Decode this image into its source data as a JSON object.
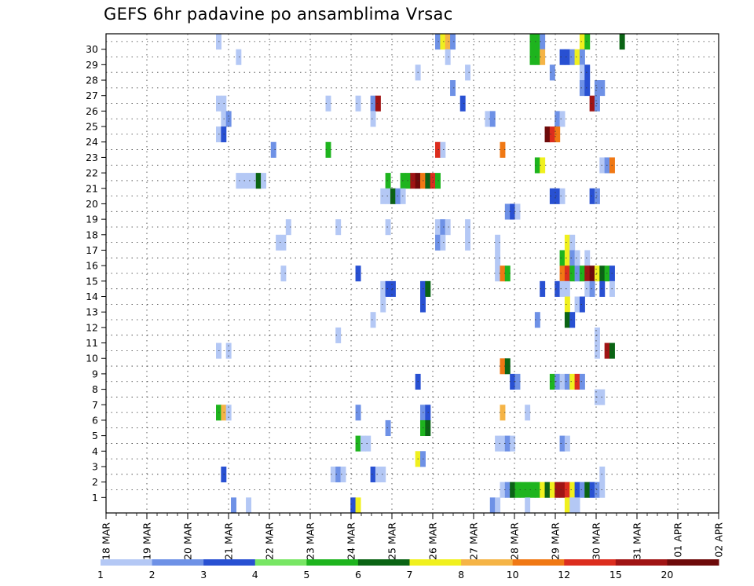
{
  "chart_data": {
    "type": "heatmap",
    "title": "GEFS 6hr padavine po ansamblima Vrsac",
    "xlabel": "",
    "ylabel": "",
    "x_tick_labels": [
      "18 MAR",
      "19 MAR",
      "20 MAR",
      "21 MAR",
      "22 MAR",
      "23 MAR",
      "24 MAR",
      "25 MAR",
      "26 MAR",
      "27 MAR",
      "28 MAR",
      "29 MAR",
      "30 MAR",
      "31 MAR",
      "01 APR",
      "02 APR"
    ],
    "x_range_hours": [
      0,
      360
    ],
    "step_hours": 6,
    "y_tick_labels": [
      "1",
      "2",
      "3",
      "4",
      "5",
      "6",
      "7",
      "8",
      "9",
      "10",
      "11",
      "12",
      "13",
      "14",
      "15",
      "16",
      "17",
      "18",
      "19",
      "20",
      "21",
      "22",
      "23",
      "24",
      "25",
      "26",
      "27",
      "28",
      "29",
      "30"
    ],
    "y_range": [
      0,
      30
    ],
    "grid": true,
    "legend": {
      "placement": "bottom",
      "labels": [
        "1",
        "2",
        "3",
        "4",
        "5",
        "6",
        "7",
        "8",
        "10",
        "12",
        "15",
        "20"
      ],
      "colors": [
        "#b4c8f5",
        "#6e91e6",
        "#2850d2",
        "#78e664",
        "#1eb41e",
        "#0a6414",
        "#f0f01e",
        "#f5b446",
        "#f07814",
        "#dc2d1e",
        "#a01414",
        "#6e0a0a"
      ]
    },
    "cells": [
      [
        30,
        22,
        1
      ],
      [
        30,
        66,
        2
      ],
      [
        30,
        67,
        7
      ],
      [
        30,
        68,
        8
      ],
      [
        30,
        69,
        2
      ],
      [
        30,
        85,
        5
      ],
      [
        30,
        86,
        5
      ],
      [
        30,
        87,
        2
      ],
      [
        30,
        95,
        7
      ],
      [
        30,
        96,
        5
      ],
      [
        30,
        103,
        6
      ],
      [
        29,
        26,
        1
      ],
      [
        29,
        68,
        1
      ],
      [
        29,
        85,
        5
      ],
      [
        29,
        86,
        5
      ],
      [
        29,
        87,
        8
      ],
      [
        29,
        91,
        3
      ],
      [
        29,
        92,
        3
      ],
      [
        29,
        93,
        2
      ],
      [
        29,
        94,
        7
      ],
      [
        29,
        95,
        2
      ],
      [
        28,
        62,
        1
      ],
      [
        28,
        72,
        1
      ],
      [
        28,
        89,
        2
      ],
      [
        28,
        95,
        1
      ],
      [
        28,
        96,
        3
      ],
      [
        27,
        69,
        2
      ],
      [
        27,
        95,
        2
      ],
      [
        27,
        96,
        3
      ],
      [
        27,
        98,
        2
      ],
      [
        27,
        99,
        2
      ],
      [
        26,
        22,
        1
      ],
      [
        26,
        23,
        1
      ],
      [
        26,
        44,
        1
      ],
      [
        26,
        50,
        1
      ],
      [
        26,
        53,
        2
      ],
      [
        26,
        54,
        11
      ],
      [
        26,
        71,
        3
      ],
      [
        26,
        97,
        11
      ],
      [
        26,
        98,
        2
      ],
      [
        25,
        23,
        1
      ],
      [
        25,
        24,
        2
      ],
      [
        25,
        53,
        1
      ],
      [
        25,
        76,
        1
      ],
      [
        25,
        77,
        2
      ],
      [
        25,
        90,
        2
      ],
      [
        25,
        91,
        1
      ],
      [
        24,
        22,
        1
      ],
      [
        24,
        23,
        3
      ],
      [
        24,
        88,
        12
      ],
      [
        24,
        89,
        10
      ],
      [
        24,
        90,
        9
      ],
      [
        23,
        33,
        2
      ],
      [
        23,
        44,
        5
      ],
      [
        23,
        66,
        10
      ],
      [
        23,
        67,
        1
      ],
      [
        23,
        79,
        9
      ],
      [
        22,
        86,
        5
      ],
      [
        22,
        87,
        7
      ],
      [
        22,
        99,
        1
      ],
      [
        22,
        100,
        2
      ],
      [
        22,
        101,
        9
      ],
      [
        21,
        26,
        1
      ],
      [
        21,
        27,
        1
      ],
      [
        21,
        28,
        1
      ],
      [
        21,
        29,
        1
      ],
      [
        21,
        30,
        6
      ],
      [
        21,
        31,
        1
      ],
      [
        21,
        56,
        5
      ],
      [
        21,
        59,
        5
      ],
      [
        21,
        60,
        5
      ],
      [
        21,
        61,
        11
      ],
      [
        21,
        62,
        12
      ],
      [
        21,
        63,
        9
      ],
      [
        21,
        64,
        6
      ],
      [
        21,
        65,
        10
      ],
      [
        21,
        66,
        5
      ],
      [
        20,
        55,
        1
      ],
      [
        20,
        56,
        1
      ],
      [
        20,
        57,
        6
      ],
      [
        20,
        58,
        2
      ],
      [
        20,
        59,
        1
      ],
      [
        20,
        89,
        3
      ],
      [
        20,
        90,
        3
      ],
      [
        20,
        91,
        1
      ],
      [
        20,
        97,
        3
      ],
      [
        20,
        98,
        2
      ],
      [
        19,
        80,
        2
      ],
      [
        19,
        81,
        3
      ],
      [
        19,
        82,
        1
      ],
      [
        18,
        36,
        1
      ],
      [
        18,
        46,
        1
      ],
      [
        18,
        56,
        1
      ],
      [
        18,
        66,
        1
      ],
      [
        18,
        67,
        2
      ],
      [
        18,
        68,
        1
      ],
      [
        18,
        72,
        1
      ],
      [
        17,
        34,
        1
      ],
      [
        17,
        35,
        1
      ],
      [
        17,
        66,
        2
      ],
      [
        17,
        67,
        1
      ],
      [
        17,
        72,
        1
      ],
      [
        17,
        78,
        1
      ],
      [
        17,
        92,
        7
      ],
      [
        17,
        93,
        1
      ],
      [
        16,
        78,
        1
      ],
      [
        16,
        91,
        5
      ],
      [
        16,
        92,
        7
      ],
      [
        16,
        93,
        2
      ],
      [
        16,
        94,
        1
      ],
      [
        16,
        96,
        1
      ],
      [
        15,
        35,
        1
      ],
      [
        15,
        50,
        3
      ],
      [
        15,
        78,
        1
      ],
      [
        15,
        79,
        9
      ],
      [
        15,
        80,
        5
      ],
      [
        15,
        91,
        9
      ],
      [
        15,
        92,
        10
      ],
      [
        15,
        93,
        5
      ],
      [
        15,
        94,
        2
      ],
      [
        15,
        95,
        5
      ],
      [
        15,
        96,
        11
      ],
      [
        15,
        97,
        12
      ],
      [
        15,
        98,
        7
      ],
      [
        15,
        99,
        6
      ],
      [
        15,
        100,
        5
      ],
      [
        15,
        101,
        3
      ],
      [
        14,
        55,
        1
      ],
      [
        14,
        56,
        3
      ],
      [
        14,
        57,
        3
      ],
      [
        14,
        63,
        3
      ],
      [
        14,
        64,
        6
      ],
      [
        14,
        87,
        3
      ],
      [
        14,
        90,
        3
      ],
      [
        14,
        91,
        1
      ],
      [
        14,
        92,
        1
      ],
      [
        14,
        96,
        1
      ],
      [
        14,
        97,
        2
      ],
      [
        14,
        99,
        3
      ],
      [
        14,
        101,
        1
      ],
      [
        13,
        55,
        1
      ],
      [
        13,
        63,
        3
      ],
      [
        13,
        92,
        7
      ],
      [
        13,
        94,
        1
      ],
      [
        13,
        95,
        3
      ],
      [
        12,
        53,
        1
      ],
      [
        12,
        86,
        2
      ],
      [
        12,
        92,
        6
      ],
      [
        12,
        93,
        3
      ],
      [
        11,
        46,
        1
      ],
      [
        11,
        98,
        1
      ],
      [
        10,
        22,
        1
      ],
      [
        10,
        24,
        1
      ],
      [
        10,
        98,
        1
      ],
      [
        10,
        100,
        11
      ],
      [
        10,
        101,
        6
      ],
      [
        9,
        79,
        9
      ],
      [
        9,
        80,
        6
      ],
      [
        8,
        62,
        3
      ],
      [
        8,
        81,
        3
      ],
      [
        8,
        82,
        2
      ],
      [
        8,
        89,
        5
      ],
      [
        8,
        90,
        2
      ],
      [
        8,
        91,
        1
      ],
      [
        8,
        92,
        2
      ],
      [
        8,
        93,
        7
      ],
      [
        8,
        94,
        10
      ],
      [
        8,
        95,
        2
      ],
      [
        7,
        98,
        1
      ],
      [
        7,
        99,
        1
      ],
      [
        6,
        22,
        5
      ],
      [
        6,
        23,
        8
      ],
      [
        6,
        24,
        1
      ],
      [
        6,
        50,
        2
      ],
      [
        6,
        63,
        2
      ],
      [
        6,
        64,
        3
      ],
      [
        6,
        79,
        8
      ],
      [
        6,
        84,
        1
      ],
      [
        5,
        56,
        2
      ],
      [
        5,
        63,
        5
      ],
      [
        5,
        64,
        6
      ],
      [
        4,
        50,
        5
      ],
      [
        4,
        51,
        1
      ],
      [
        4,
        52,
        1
      ],
      [
        4,
        78,
        1
      ],
      [
        4,
        79,
        1
      ],
      [
        4,
        80,
        2
      ],
      [
        4,
        81,
        1
      ],
      [
        4,
        91,
        2
      ],
      [
        4,
        92,
        1
      ],
      [
        3,
        62,
        7
      ],
      [
        3,
        63,
        2
      ],
      [
        2,
        23,
        3
      ],
      [
        2,
        45,
        1
      ],
      [
        2,
        46,
        2
      ],
      [
        2,
        47,
        1
      ],
      [
        2,
        53,
        3
      ],
      [
        2,
        54,
        1
      ],
      [
        2,
        55,
        1
      ],
      [
        2,
        99,
        1
      ],
      [
        1,
        79,
        1
      ],
      [
        1,
        80,
        2
      ],
      [
        1,
        81,
        6
      ],
      [
        1,
        82,
        5
      ],
      [
        1,
        83,
        5
      ],
      [
        1,
        84,
        5
      ],
      [
        1,
        85,
        5
      ],
      [
        1,
        86,
        5
      ],
      [
        1,
        87,
        7
      ],
      [
        1,
        88,
        6
      ],
      [
        1,
        89,
        7
      ],
      [
        1,
        90,
        11
      ],
      [
        1,
        91,
        11
      ],
      [
        1,
        92,
        10
      ],
      [
        1,
        93,
        7
      ],
      [
        1,
        94,
        3
      ],
      [
        1,
        95,
        2
      ],
      [
        1,
        96,
        6
      ],
      [
        1,
        97,
        3
      ],
      [
        1,
        98,
        2
      ],
      [
        1,
        99,
        1
      ],
      [
        0,
        25,
        2
      ],
      [
        0,
        28,
        1
      ],
      [
        0,
        49,
        3
      ],
      [
        0,
        50,
        7
      ],
      [
        0,
        77,
        2
      ],
      [
        0,
        78,
        1
      ],
      [
        0,
        84,
        1
      ],
      [
        0,
        92,
        7
      ],
      [
        0,
        93,
        1
      ],
      [
        0,
        94,
        1
      ]
    ]
  }
}
